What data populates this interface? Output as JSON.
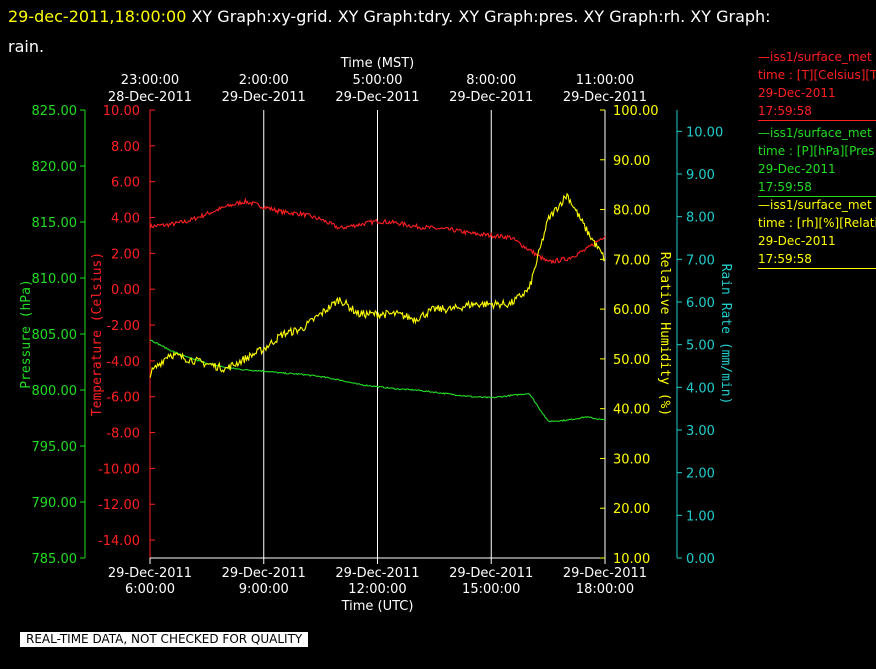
{
  "header": {
    "timestamp": "29-dec-2011,18:00:00",
    "graphs": "XY Graph:xy-grid.  XY Graph:tdry.  XY Graph:pres.  XY Graph:rh.  XY Graph:",
    "graphs_wrap": "rain."
  },
  "colors": {
    "temperature": "#ff2020",
    "pressure": "#22dd22",
    "humidity": "#ffff00",
    "rain": "#22cccc",
    "grid": "#ffffff",
    "background": "#000000"
  },
  "legend": [
    {
      "line1": "—iss1/surface_met",
      "line2": "time : [T][Celsius][T",
      "line3": "29-Dec-2011",
      "line4": "17:59:58"
    },
    {
      "line1": "—iss1/surface_met",
      "line2": "time : [P][hPa][Pres",
      "line3": "29-Dec-2011",
      "line4": "17:59:58"
    },
    {
      "line1": "—iss1/surface_met",
      "line2": "time : [rh][%][Relati",
      "line3": "29-Dec-2011",
      "line4": "17:59:58"
    }
  ],
  "footer": "REAL-TIME DATA, NOT CHECKED FOR QUALITY",
  "chart_data": {
    "type": "line",
    "grid": true,
    "x_range": [
      "29-Dec-2011 06:00",
      "29-Dec-2011 18:00"
    ],
    "top_axis": {
      "label": "Time (MST)",
      "ticks": [
        {
          "time": "23:00:00",
          "date": "28-Dec-2011"
        },
        {
          "time": "2:00:00",
          "date": "29-Dec-2011"
        },
        {
          "time": "5:00:00",
          "date": "29-Dec-2011"
        },
        {
          "time": "8:00:00",
          "date": "29-Dec-2011"
        },
        {
          "time": "11:00:00",
          "date": "29-Dec-2011"
        }
      ]
    },
    "bottom_axis": {
      "label": "Time (UTC)",
      "ticks": [
        {
          "date": "29-Dec-2011",
          "time": "6:00:00"
        },
        {
          "date": "29-Dec-2011",
          "time": "9:00:00"
        },
        {
          "date": "29-Dec-2011",
          "time": "12:00:00"
        },
        {
          "date": "29-Dec-2011",
          "time": "15:00:00"
        },
        {
          "date": "29-Dec-2011",
          "time": "18:00:00"
        }
      ]
    },
    "axes": {
      "pressure": {
        "label": "Pressure (hPa)",
        "range": [
          785,
          825
        ],
        "ticks": [
          "785.00",
          "790.00",
          "795.00",
          "800.00",
          "805.00",
          "810.00",
          "815.00",
          "820.00",
          "825.00"
        ]
      },
      "temperature": {
        "label": "Temperature (Celsius)",
        "range": [
          -15,
          10
        ],
        "ticks": [
          "-14.00",
          "-12.00",
          "-10.00",
          "-8.00",
          "-6.00",
          "-4.00",
          "-2.00",
          "0.00",
          "2.00",
          "4.00",
          "6.00",
          "8.00",
          "10.00"
        ]
      },
      "humidity": {
        "label": "Relative Humidity (%)",
        "range": [
          10,
          100
        ],
        "ticks": [
          "10.00",
          "20.00",
          "30.00",
          "40.00",
          "50.00",
          "60.00",
          "70.00",
          "80.00",
          "90.00",
          "100.00"
        ]
      },
      "rain": {
        "label": "Rain Rate (mm/min)",
        "range": [
          0,
          10.5
        ],
        "ticks": [
          "0.00",
          "1.00",
          "2.00",
          "3.00",
          "4.00",
          "5.00",
          "6.00",
          "7.00",
          "8.00",
          "9.00",
          "10.00"
        ]
      }
    },
    "hours_utc": [
      6.0,
      6.5,
      7.0,
      7.5,
      8.0,
      8.5,
      9.0,
      9.5,
      10.0,
      10.5,
      11.0,
      11.5,
      12.0,
      12.5,
      13.0,
      13.5,
      14.0,
      14.5,
      15.0,
      15.5,
      16.0,
      16.5,
      17.0,
      17.5,
      18.0
    ],
    "series": [
      {
        "key": "temperature",
        "values": [
          3.5,
          3.6,
          3.8,
          4.2,
          4.6,
          4.9,
          4.6,
          4.3,
          4.2,
          3.9,
          3.4,
          3.6,
          3.8,
          3.7,
          3.5,
          3.4,
          3.3,
          3.1,
          3.0,
          2.9,
          2.2,
          1.5,
          1.7,
          2.2,
          3.0
        ]
      },
      {
        "key": "pressure",
        "values": [
          804.5,
          803.6,
          802.9,
          802.4,
          802.0,
          801.8,
          801.7,
          801.5,
          801.4,
          801.2,
          800.9,
          800.5,
          800.3,
          800.1,
          800.0,
          799.8,
          799.6,
          799.4,
          799.3,
          799.5,
          799.7,
          797.2,
          797.3,
          797.6,
          797.3
        ]
      },
      {
        "key": "humidity",
        "values": [
          47,
          51,
          50,
          49,
          48,
          50,
          52,
          55,
          56,
          59,
          62,
          59,
          59,
          59,
          58,
          60,
          60,
          61,
          61,
          61,
          64,
          78,
          83,
          76,
          70
        ]
      }
    ]
  }
}
